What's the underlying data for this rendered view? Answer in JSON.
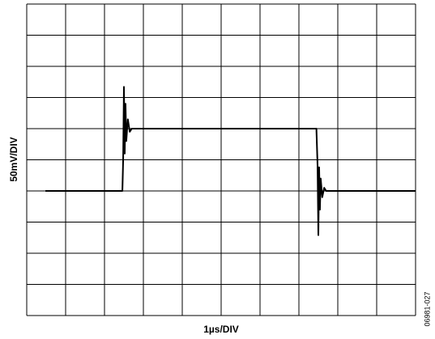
{
  "chart_data": {
    "type": "line",
    "y_label": "50mV/DIV",
    "x_label": "1µs/DIV",
    "figure_id": "06981-027",
    "x": [
      0.48,
      2.46,
      2.48,
      2.5,
      2.52,
      2.54,
      2.56,
      2.6,
      2.65,
      2.7,
      7.45,
      7.48,
      7.5,
      7.52,
      7.54,
      7.56,
      7.6,
      7.65,
      7.7,
      10
    ],
    "values": [
      0,
      0,
      50,
      167,
      60,
      140,
      80,
      115,
      95,
      100,
      100,
      40,
      -71,
      38,
      -30,
      20,
      -10,
      5,
      0,
      0
    ],
    "color": "#000000",
    "xlim": [
      0,
      10
    ],
    "xticks": [
      0,
      1,
      2,
      3,
      4,
      5,
      6,
      7,
      8,
      9,
      10
    ],
    "ylim": [
      -200,
      300
    ],
    "yticks": [
      -200,
      -150,
      -100,
      -50,
      0,
      50,
      100,
      150,
      200,
      250,
      300
    ],
    "grid": true
  }
}
